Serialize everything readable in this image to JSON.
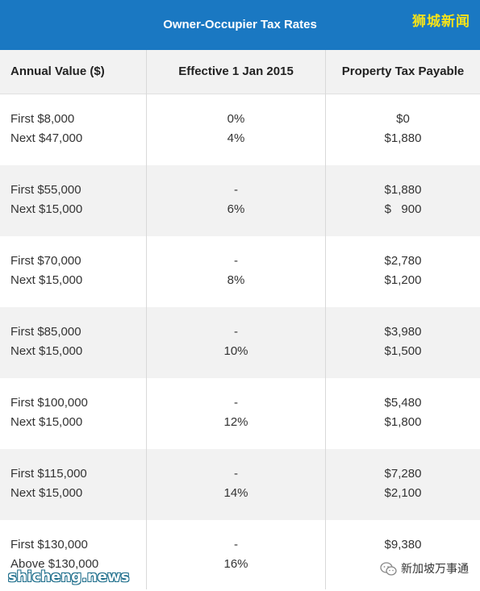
{
  "title": "Owner-Occupier Tax Rates",
  "watermarks": {
    "top_right": "狮城新闻",
    "bottom_left": "shicheng.news",
    "bottom_right": "新加坡万事通"
  },
  "columns": [
    "Annual Value ($)",
    "Effective 1 Jan 2015",
    "Property Tax Payable"
  ],
  "rows": [
    {
      "av1": "First $8,000",
      "av2": "Next $47,000",
      "r1": "0%",
      "r2": "4%",
      "p1": "$0",
      "p2": "$1,880"
    },
    {
      "av1": "First $55,000",
      "av2": "Next $15,000",
      "r1": "-",
      "r2": "6%",
      "p1": "$1,880",
      "p2": "$   900"
    },
    {
      "av1": "First $70,000",
      "av2": "Next $15,000",
      "r1": "-",
      "r2": "8%",
      "p1": "$2,780",
      "p2": "$1,200"
    },
    {
      "av1": "First $85,000",
      "av2": "Next $15,000",
      "r1": "-",
      "r2": "10%",
      "p1": "$3,980",
      "p2": "$1,500"
    },
    {
      "av1": "First $100,000",
      "av2": "Next $15,000",
      "r1": "-",
      "r2": "12%",
      "p1": "$5,480",
      "p2": "$1,800"
    },
    {
      "av1": "First $115,000",
      "av2": "Next $15,000",
      "r1": "-",
      "r2": "14%",
      "p1": "$7,280",
      "p2": "$2,100"
    },
    {
      "av1": "First $130,000",
      "av2": "Above $130,000",
      "r1": "-",
      "r2": "16%",
      "p1": "$9,380",
      "p2": ""
    }
  ],
  "colors": {
    "header_bg": "#1a78c2",
    "stripe": "#f2f2f2",
    "watermark_yellow": "#f5e21a"
  }
}
